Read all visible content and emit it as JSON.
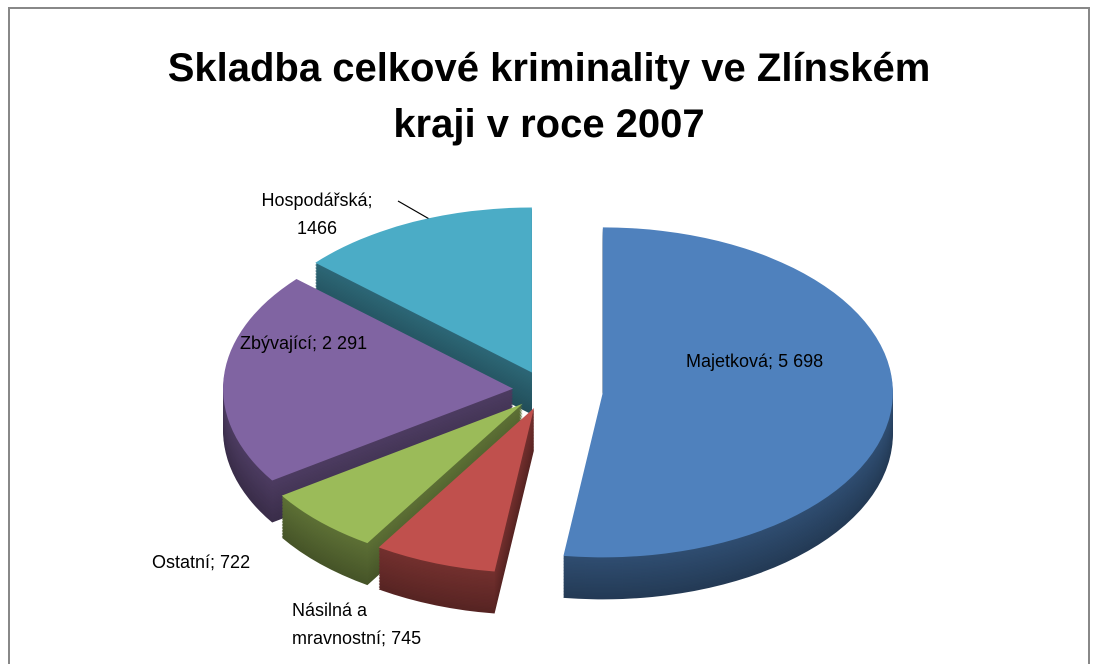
{
  "chart_data": {
    "type": "pie",
    "title": "Skladba celkové kriminality ve Zlínském kraji v roce 2007",
    "categories": [
      "Majetková",
      "Násilná a mravnostní",
      "Ostatní",
      "Zbývající",
      "Hospodářská"
    ],
    "values": [
      5698,
      745,
      722,
      2291,
      1466
    ],
    "value_labels": [
      "5 698",
      "745",
      "722",
      "2 291",
      "1466"
    ],
    "label_separator": "; ",
    "colors": [
      "#4f81bd",
      "#c0504d",
      "#9bbb59",
      "#8064a2",
      "#4bacc6"
    ]
  }
}
